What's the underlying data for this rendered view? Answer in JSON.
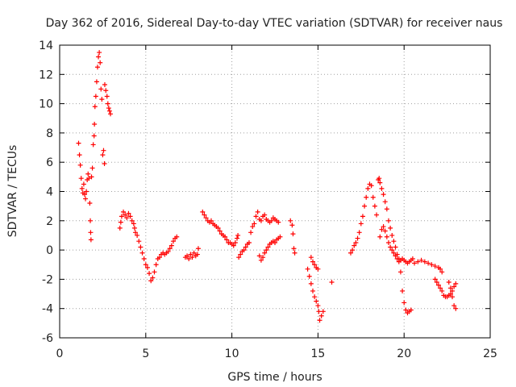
{
  "chart_data": {
    "type": "scatter",
    "title": "Day 362 of 2016, Sidereal Day-to-day VTEC variation (SDTVAR) for receiver naus",
    "xlabel": "GPS time / hours",
    "ylabel": "SDTVAR / TECUs",
    "xlim": [
      0,
      25
    ],
    "ylim": [
      -6,
      14
    ],
    "xticks": [
      "0",
      "5",
      "10",
      "15",
      "20",
      "25"
    ],
    "yticks": [
      "-6",
      "-4",
      "-2",
      "0",
      "2",
      "4",
      "6",
      "8",
      "10",
      "12",
      "14"
    ],
    "grid": true,
    "marker": "+",
    "color": "#ff0000",
    "series": [
      {
        "name": "SDTVAR",
        "points": [
          [
            1.1,
            7.3
          ],
          [
            1.15,
            6.5
          ],
          [
            1.2,
            5.8
          ],
          [
            1.25,
            4.9
          ],
          [
            1.3,
            4.2
          ],
          [
            1.35,
            3.9
          ],
          [
            1.4,
            4.5
          ],
          [
            1.45,
            3.8
          ],
          [
            1.5,
            3.5
          ],
          [
            1.55,
            4.0
          ],
          [
            1.6,
            4.8
          ],
          [
            1.65,
            5.2
          ],
          [
            1.7,
            4.9
          ],
          [
            1.75,
            3.2
          ],
          [
            1.78,
            2.0
          ],
          [
            1.8,
            1.2
          ],
          [
            1.82,
            0.7
          ],
          [
            1.85,
            5.0
          ],
          [
            1.9,
            5.6
          ],
          [
            1.95,
            7.2
          ],
          [
            2.0,
            7.8
          ],
          [
            2.02,
            8.6
          ],
          [
            2.05,
            9.8
          ],
          [
            2.1,
            10.5
          ],
          [
            2.15,
            11.5
          ],
          [
            2.2,
            12.5
          ],
          [
            2.25,
            13.2
          ],
          [
            2.3,
            13.5
          ],
          [
            2.35,
            12.8
          ],
          [
            2.4,
            11.0
          ],
          [
            2.45,
            10.3
          ],
          [
            2.5,
            6.5
          ],
          [
            2.55,
            6.8
          ],
          [
            2.6,
            5.9
          ],
          [
            2.62,
            11.3
          ],
          [
            2.68,
            10.9
          ],
          [
            2.75,
            10.5
          ],
          [
            2.8,
            10.0
          ],
          [
            2.85,
            9.7
          ],
          [
            2.9,
            9.5
          ],
          [
            2.95,
            9.3
          ],
          [
            3.5,
            1.5
          ],
          [
            3.55,
            1.9
          ],
          [
            3.6,
            2.3
          ],
          [
            3.7,
            2.6
          ],
          [
            3.8,
            2.4
          ],
          [
            3.9,
            2.2
          ],
          [
            4.0,
            2.5
          ],
          [
            4.1,
            2.3
          ],
          [
            4.2,
            2.0
          ],
          [
            4.3,
            1.8
          ],
          [
            4.35,
            1.5
          ],
          [
            4.4,
            1.2
          ],
          [
            4.5,
            1.0
          ],
          [
            4.6,
            0.6
          ],
          [
            4.7,
            0.2
          ],
          [
            4.8,
            -0.2
          ],
          [
            4.9,
            -0.6
          ],
          [
            5.0,
            -1.0
          ],
          [
            5.1,
            -1.2
          ],
          [
            5.2,
            -1.6
          ],
          [
            5.3,
            -2.1
          ],
          [
            5.4,
            -1.9
          ],
          [
            5.5,
            -1.5
          ],
          [
            5.6,
            -1.0
          ],
          [
            5.7,
            -0.6
          ],
          [
            5.8,
            -0.5
          ],
          [
            5.9,
            -0.3
          ],
          [
            6.0,
            -0.2
          ],
          [
            6.1,
            -0.3
          ],
          [
            6.2,
            -0.2
          ],
          [
            6.3,
            -0.1
          ],
          [
            6.4,
            0.1
          ],
          [
            6.5,
            0.3
          ],
          [
            6.6,
            0.6
          ],
          [
            6.7,
            0.8
          ],
          [
            6.8,
            0.9
          ],
          [
            7.3,
            -0.5
          ],
          [
            7.4,
            -0.4
          ],
          [
            7.5,
            -0.6
          ],
          [
            7.6,
            -0.3
          ],
          [
            7.7,
            -0.5
          ],
          [
            7.8,
            -0.2
          ],
          [
            7.9,
            -0.4
          ],
          [
            8.0,
            -0.3
          ],
          [
            8.05,
            0.1
          ],
          [
            8.3,
            2.6
          ],
          [
            8.4,
            2.4
          ],
          [
            8.5,
            2.2
          ],
          [
            8.6,
            2.0
          ],
          [
            8.7,
            1.9
          ],
          [
            8.8,
            2.0
          ],
          [
            8.9,
            1.8
          ],
          [
            9.0,
            1.7
          ],
          [
            9.1,
            1.6
          ],
          [
            9.2,
            1.5
          ],
          [
            9.3,
            1.3
          ],
          [
            9.4,
            1.1
          ],
          [
            9.5,
            1.0
          ],
          [
            9.6,
            0.9
          ],
          [
            9.7,
            0.7
          ],
          [
            9.8,
            0.5
          ],
          [
            9.9,
            0.5
          ],
          [
            10.0,
            0.4
          ],
          [
            10.1,
            0.3
          ],
          [
            10.2,
            0.5
          ],
          [
            10.3,
            0.8
          ],
          [
            10.35,
            1.0
          ],
          [
            10.4,
            -0.5
          ],
          [
            10.5,
            -0.3
          ],
          [
            10.6,
            -0.1
          ],
          [
            10.7,
            0.0
          ],
          [
            10.8,
            0.2
          ],
          [
            10.9,
            0.4
          ],
          [
            11.0,
            0.5
          ],
          [
            11.1,
            1.2
          ],
          [
            11.2,
            1.6
          ],
          [
            11.3,
            1.8
          ],
          [
            11.4,
            2.3
          ],
          [
            11.5,
            2.6
          ],
          [
            11.6,
            2.1
          ],
          [
            11.7,
            2.0
          ],
          [
            11.8,
            2.3
          ],
          [
            11.9,
            2.4
          ],
          [
            12.0,
            2.1
          ],
          [
            12.1,
            2.0
          ],
          [
            12.2,
            1.9
          ],
          [
            12.3,
            2.0
          ],
          [
            12.4,
            2.2
          ],
          [
            12.5,
            2.1
          ],
          [
            12.6,
            2.0
          ],
          [
            12.7,
            1.9
          ],
          [
            11.6,
            -0.4
          ],
          [
            11.7,
            -0.7
          ],
          [
            11.8,
            -0.5
          ],
          [
            11.9,
            -0.2
          ],
          [
            12.0,
            0.0
          ],
          [
            12.1,
            0.2
          ],
          [
            12.2,
            0.4
          ],
          [
            12.3,
            0.5
          ],
          [
            12.4,
            0.6
          ],
          [
            12.5,
            0.5
          ],
          [
            12.6,
            0.7
          ],
          [
            12.7,
            0.8
          ],
          [
            12.8,
            0.9
          ],
          [
            13.4,
            2.0
          ],
          [
            13.5,
            1.7
          ],
          [
            13.55,
            1.1
          ],
          [
            13.6,
            0.1
          ],
          [
            13.65,
            -0.2
          ],
          [
            14.4,
            -1.3
          ],
          [
            14.5,
            -1.8
          ],
          [
            14.6,
            -2.3
          ],
          [
            14.7,
            -2.8
          ],
          [
            14.8,
            -3.2
          ],
          [
            14.9,
            -3.5
          ],
          [
            15.0,
            -3.8
          ],
          [
            15.05,
            -4.2
          ],
          [
            15.1,
            -4.8
          ],
          [
            15.2,
            -4.5
          ],
          [
            15.3,
            -4.2
          ],
          [
            14.6,
            -0.5
          ],
          [
            14.7,
            -0.8
          ],
          [
            14.8,
            -1.0
          ],
          [
            14.9,
            -1.2
          ],
          [
            15.0,
            -1.3
          ],
          [
            15.8,
            -2.2
          ],
          [
            16.9,
            -0.2
          ],
          [
            17.0,
            0.0
          ],
          [
            17.1,
            0.3
          ],
          [
            17.2,
            0.5
          ],
          [
            17.3,
            0.8
          ],
          [
            17.4,
            1.2
          ],
          [
            17.5,
            1.8
          ],
          [
            17.6,
            2.3
          ],
          [
            17.7,
            3.0
          ],
          [
            17.8,
            3.6
          ],
          [
            17.9,
            4.2
          ],
          [
            18.0,
            4.5
          ],
          [
            18.1,
            4.4
          ],
          [
            18.2,
            3.6
          ],
          [
            18.3,
            3.0
          ],
          [
            18.4,
            2.4
          ],
          [
            18.5,
            4.8
          ],
          [
            18.55,
            4.9
          ],
          [
            18.6,
            4.6
          ],
          [
            18.7,
            4.2
          ],
          [
            18.8,
            3.8
          ],
          [
            18.9,
            3.3
          ],
          [
            19.0,
            2.8
          ],
          [
            19.1,
            2.0
          ],
          [
            19.2,
            1.5
          ],
          [
            19.3,
            1.0
          ],
          [
            19.4,
            0.6
          ],
          [
            19.5,
            0.2
          ],
          [
            19.6,
            -0.3
          ],
          [
            19.7,
            -0.6
          ],
          [
            19.8,
            -1.5
          ],
          [
            19.9,
            -2.8
          ],
          [
            20.0,
            -3.6
          ],
          [
            20.1,
            -4.1
          ],
          [
            20.2,
            -4.3
          ],
          [
            20.3,
            -4.2
          ],
          [
            20.4,
            -4.1
          ],
          [
            18.6,
            0.9
          ],
          [
            18.7,
            1.4
          ],
          [
            18.8,
            1.6
          ],
          [
            18.9,
            1.3
          ],
          [
            19.0,
            0.9
          ],
          [
            19.1,
            0.5
          ],
          [
            19.2,
            0.2
          ],
          [
            19.3,
            0.0
          ],
          [
            19.4,
            -0.2
          ],
          [
            19.5,
            -0.4
          ],
          [
            19.6,
            -0.6
          ],
          [
            19.7,
            -0.8
          ],
          [
            19.8,
            -0.7
          ],
          [
            19.9,
            -0.6
          ],
          [
            20.0,
            -0.7
          ],
          [
            20.1,
            -0.8
          ],
          [
            20.2,
            -0.9
          ],
          [
            20.3,
            -0.8
          ],
          [
            20.4,
            -0.7
          ],
          [
            20.5,
            -0.6
          ],
          [
            20.6,
            -0.9
          ],
          [
            20.8,
            -0.8
          ],
          [
            21.0,
            -0.7
          ],
          [
            21.2,
            -0.8
          ],
          [
            21.4,
            -0.9
          ],
          [
            21.6,
            -1.0
          ],
          [
            21.8,
            -1.1
          ],
          [
            22.0,
            -1.2
          ],
          [
            22.1,
            -1.3
          ],
          [
            22.2,
            -1.5
          ],
          [
            21.8,
            -2.0
          ],
          [
            21.9,
            -2.2
          ],
          [
            22.0,
            -2.4
          ],
          [
            22.1,
            -2.6
          ],
          [
            22.2,
            -2.8
          ],
          [
            22.3,
            -3.1
          ],
          [
            22.4,
            -3.2
          ],
          [
            22.5,
            -3.2
          ],
          [
            22.6,
            -3.1
          ],
          [
            22.7,
            -3.0
          ],
          [
            22.8,
            -2.8
          ],
          [
            22.9,
            -2.5
          ],
          [
            23.0,
            -2.3
          ],
          [
            22.6,
            -2.2
          ],
          [
            22.7,
            -2.6
          ],
          [
            22.8,
            -3.2
          ],
          [
            22.9,
            -3.8
          ],
          [
            23.0,
            -4.0
          ]
        ]
      }
    ]
  }
}
